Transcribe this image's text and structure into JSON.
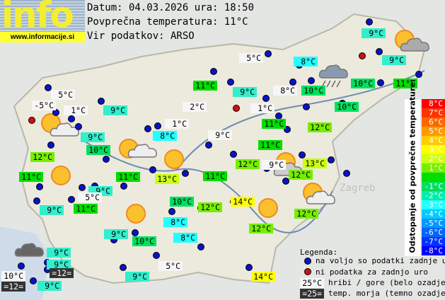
{
  "header": {
    "date_line": "Datum: 04.03.2026 ura: 18:50",
    "avg_line": "Povprečna temperatura: 11°C",
    "source_line": "Vir podatkov: ARSO"
  },
  "logo": {
    "text": "info",
    "url": "www.informacije.si"
  },
  "colors": {
    "14": "#ffff00",
    "13": "#ccff11",
    "12": "#77ee00",
    "11": "#00dd00",
    "10": "#00e060",
    "9": "#33eecc",
    "8": "#22ffff",
    "hill": "#f6f6f6",
    "sea": "#333333",
    "station_ok": "#0a12c8",
    "station_missing": "#d01010"
  },
  "stations": [
    {
      "t": "5°C",
      "k": "hill"
    },
    {
      "t": "-5°C",
      "k": "hill"
    },
    {
      "t": "1°C",
      "k": "hill"
    },
    {
      "t": "9°C",
      "k": "9"
    },
    {
      "t": "9°C",
      "k": "9"
    },
    {
      "t": "10°C",
      "k": "10"
    },
    {
      "t": "12°C",
      "k": "12"
    },
    {
      "t": "11°C",
      "k": "11"
    },
    {
      "t": "11°C",
      "k": "11"
    },
    {
      "t": "9°C",
      "k": "9"
    },
    {
      "t": "5°C",
      "k": "hill"
    },
    {
      "t": "9°C",
      "k": "9"
    },
    {
      "t": "11°C",
      "k": "11"
    },
    {
      "t": "5°C",
      "k": "hill"
    },
    {
      "t": "8°C",
      "k": "8"
    },
    {
      "t": "11°C",
      "k": "11"
    },
    {
      "t": "9°C",
      "k": "9"
    },
    {
      "t": "8°C",
      "k": "hill"
    },
    {
      "t": "10°C",
      "k": "10"
    },
    {
      "t": "2°C",
      "k": "hill"
    },
    {
      "t": "1°C",
      "k": "hill"
    },
    {
      "t": "1°C",
      "k": "hill"
    },
    {
      "t": "8°C",
      "k": "8"
    },
    {
      "t": "11°C",
      "k": "11"
    },
    {
      "t": "12°C",
      "k": "12"
    },
    {
      "t": "9°C",
      "k": "hill"
    },
    {
      "t": "11°C",
      "k": "11"
    },
    {
      "t": "12°C",
      "k": "12"
    },
    {
      "t": "9°C",
      "k": "hill"
    },
    {
      "t": "13°C",
      "k": "13"
    },
    {
      "t": "12°C",
      "k": "12"
    },
    {
      "t": "13°C",
      "k": "13"
    },
    {
      "t": "11°C",
      "k": "11"
    },
    {
      "t": "10°C",
      "k": "10"
    },
    {
      "t": "9°C",
      "k": "9"
    },
    {
      "t": "9°C",
      "k": "9"
    },
    {
      "t": "10°C",
      "k": "10"
    },
    {
      "t": "11°C",
      "k": "11"
    },
    {
      "t": "10°C",
      "k": "10"
    },
    {
      "t": "12°C",
      "k": "12"
    },
    {
      "t": "14°C",
      "k": "14"
    },
    {
      "t": "12°C",
      "k": "12"
    },
    {
      "t": "12°C",
      "k": "12"
    },
    {
      "t": "8°C",
      "k": "8"
    },
    {
      "t": "8°C",
      "k": "8"
    },
    {
      "t": "9°C",
      "k": "9"
    },
    {
      "t": "10°C",
      "k": "10"
    },
    {
      "t": "9°C",
      "k": "9"
    },
    {
      "t": "9°C",
      "k": "9"
    },
    {
      "t": "=12=",
      "k": "sea"
    },
    {
      "t": "10°C",
      "k": "hill"
    },
    {
      "t": "=12=",
      "k": "sea"
    },
    {
      "t": "9°C",
      "k": "9"
    },
    {
      "t": "5°C",
      "k": "hill"
    },
    {
      "t": "9°C",
      "k": "9"
    },
    {
      "t": "14°C",
      "k": "14"
    }
  ],
  "scale": {
    "title": "Odstopanje od povprečne temperature:",
    "steps": [
      {
        "t": "8°C",
        "c": "#ff0000"
      },
      {
        "t": "7°C",
        "c": "#ff3300"
      },
      {
        "t": "6°C",
        "c": "#ff6600"
      },
      {
        "t": "5°C",
        "c": "#ff9900"
      },
      {
        "t": "4°C",
        "c": "#ffcc00"
      },
      {
        "t": "3°C",
        "c": "#ffff00"
      },
      {
        "t": "2°C",
        "c": "#ccff11"
      },
      {
        "t": "1°C",
        "c": "#77ee00"
      },
      {
        "t": "",
        "c": "#00dd00"
      },
      {
        "t": "-1°C",
        "c": "#00e060"
      },
      {
        "t": "-2°C",
        "c": "#00eeaa"
      },
      {
        "t": "-3°C",
        "c": "#22ffff"
      },
      {
        "t": "-4°C",
        "c": "#00ccff"
      },
      {
        "t": "-5°C",
        "c": "#0099ff"
      },
      {
        "t": "-6°C",
        "c": "#0066ff"
      },
      {
        "t": "-7°C",
        "c": "#0033ff"
      },
      {
        "t": "-8°C",
        "c": "#0000ff"
      }
    ]
  },
  "legend": {
    "title": "Legenda:",
    "ok": "na voljo so podatki zadnje ure",
    "missing": "ni podatka za zadnjo uro",
    "hill_sample": "25°C",
    "hill_text": "hribi / gore (belo ozadje)",
    "sea_sample": "=25=",
    "sea_text": "temp. morja (temno ozadje)"
  },
  "map_labels": {
    "zagreb": "Zagreb"
  }
}
